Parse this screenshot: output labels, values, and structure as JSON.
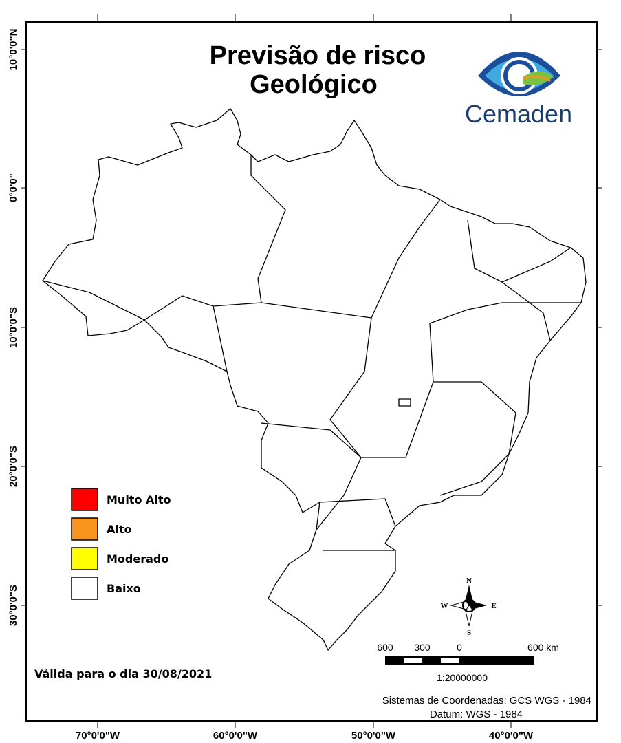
{
  "title": [
    "Previsão de risco",
    "Geológico"
  ],
  "logo": "Cemaden",
  "legend": [
    {
      "label": "Muito Alto",
      "color": "#ff0000"
    },
    {
      "label": "Alto",
      "color": "#f7941d"
    },
    {
      "label": "Moderado",
      "color": "#ffff00"
    },
    {
      "label": "Baixo",
      "color": "#ffffff"
    }
  ],
  "valid_date": "Válida para o dia 30/08/2021",
  "longitude_labels": [
    "70°0'0\"W",
    "60°0'0\"W",
    "50°0'0\"W",
    "40°0'0\"W"
  ],
  "latitude_labels": [
    "10°0'0\"N",
    "0°0'0\"",
    "10°0'0\"S",
    "20°0'0\"S",
    "30°0'0\"S"
  ],
  "compass": {
    "north": "N",
    "south": "S",
    "east": "E",
    "west": "W"
  },
  "scale_bar": {
    "labels": [
      "600",
      "300",
      "0",
      "600 km"
    ],
    "ratio": "1:20000000"
  },
  "credits": [
    "Sistemas de Coordenadas: GCS WGS - 1984",
    "Datum: WGS - 1984"
  ]
}
